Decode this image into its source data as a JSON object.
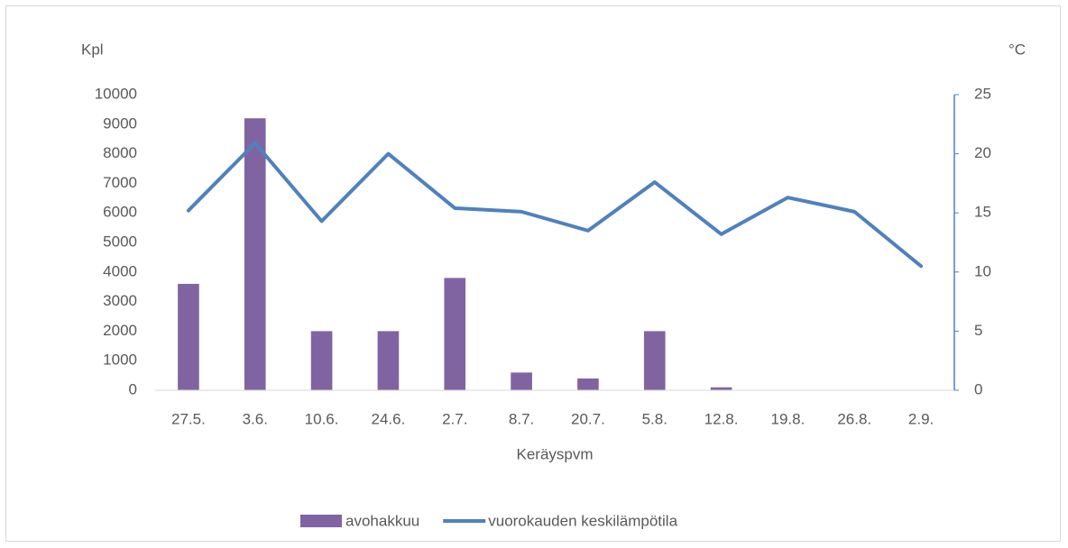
{
  "chart_data": {
    "type": "bar",
    "x_label": "Keräyspvm",
    "y_label": "Kpl",
    "y2_label": "°C",
    "categories": [
      "27.5.",
      "3.6.",
      "10.6.",
      "24.6.",
      "2.7.",
      "8.7.",
      "20.7.",
      "5.8.",
      "12.8.",
      "19.8.",
      "26.8.",
      "2.9."
    ],
    "series": [
      {
        "name": "avohakkuu",
        "type": "bar",
        "color": "#8064a2",
        "values": [
          3600,
          9200,
          2000,
          2000,
          3800,
          600,
          400,
          2000,
          100,
          10,
          0,
          0
        ]
      },
      {
        "name": "vuorokauden keskilämpötila",
        "type": "line",
        "axis": "y2",
        "color": "#4f81bd",
        "values": [
          15.2,
          20.9,
          14.3,
          20.0,
          15.4,
          15.1,
          13.5,
          17.6,
          13.2,
          16.3,
          15.1,
          10.5
        ]
      }
    ],
    "ylim": [
      0,
      10000
    ],
    "yticks": [
      0,
      1000,
      2000,
      3000,
      4000,
      5000,
      6000,
      7000,
      8000,
      9000,
      10000
    ],
    "y2lim": [
      0,
      25
    ],
    "y2ticks": [
      0,
      5,
      10,
      15,
      20,
      25
    ],
    "grid": false,
    "legend": "bottom"
  }
}
